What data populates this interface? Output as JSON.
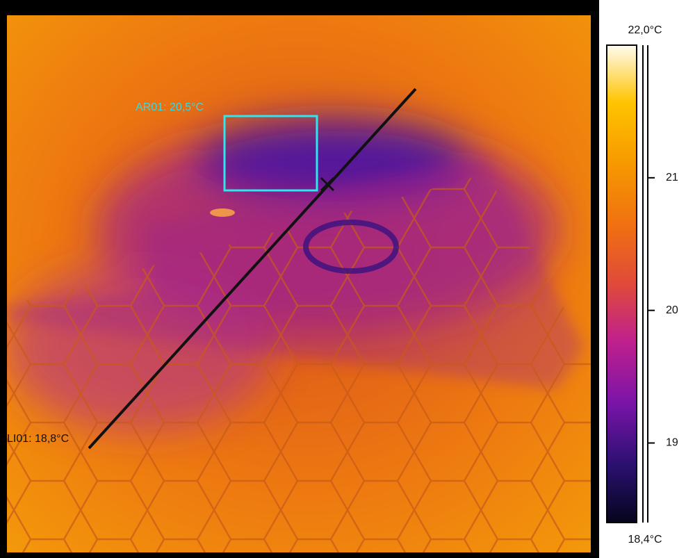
{
  "image": {
    "area": {
      "label": "AR01: 20,5°C"
    },
    "line": {
      "label": "LI01: 18,8°C"
    }
  },
  "scale": {
    "max": {
      "value": 22,
      "label": "22,0°C"
    },
    "min": {
      "value": 18.4,
      "label": "18,4°C"
    },
    "ticks": [
      21,
      20,
      19
    ]
  }
}
